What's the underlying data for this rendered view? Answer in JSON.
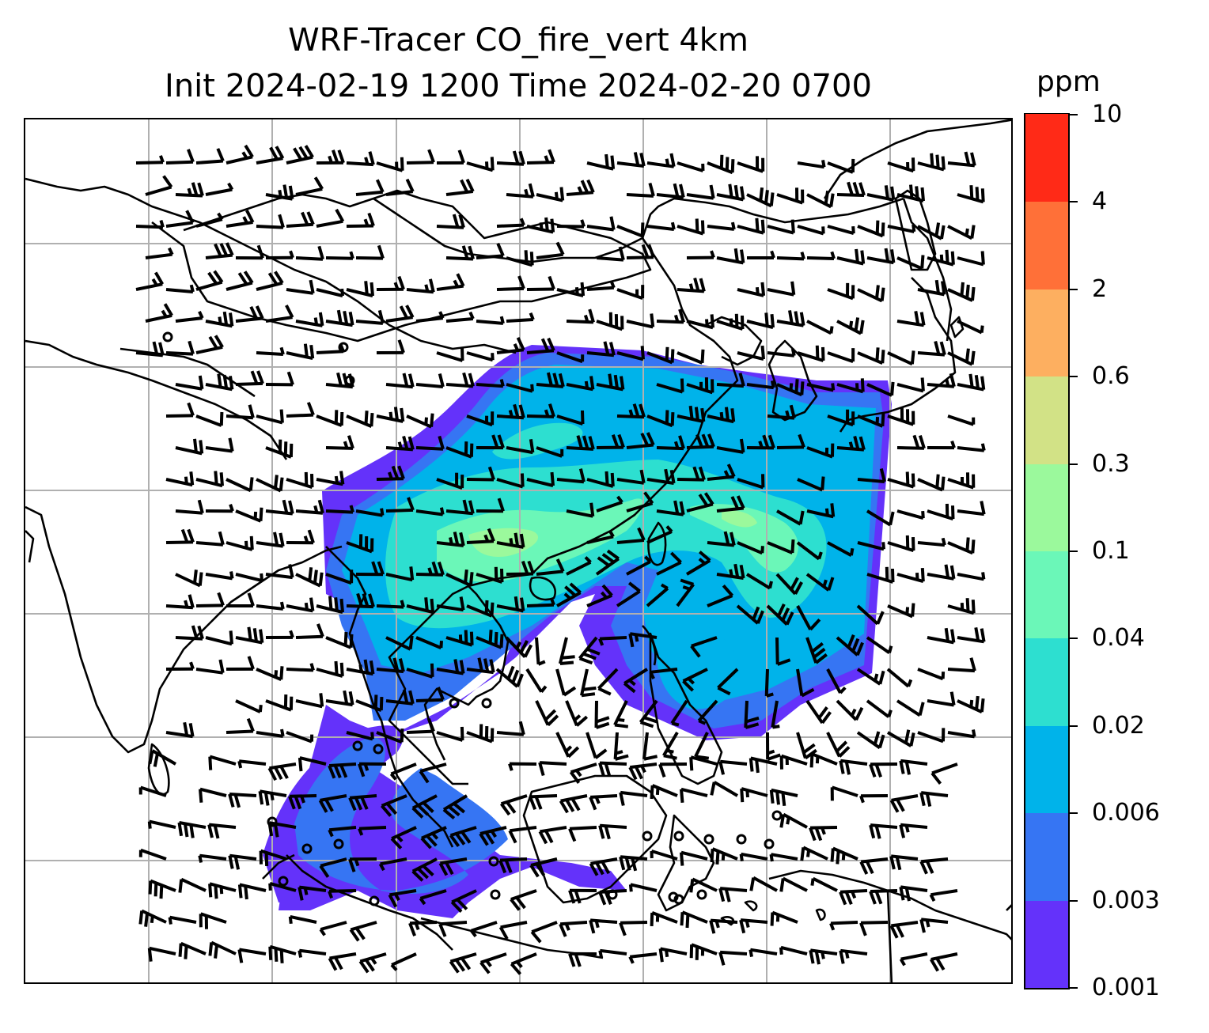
{
  "title": {
    "line1": "WRF-Tracer CO_fire_vert 4km",
    "line2": "Init 2024-02-19 1200 Time 2024-02-20 0700"
  },
  "colorbar": {
    "unit": "ppm",
    "levels": [
      {
        "label": "0.001",
        "color": "#6432fa"
      },
      {
        "label": "0.003",
        "color": "#3675f3"
      },
      {
        "label": "0.006",
        "color": "#00b3ea"
      },
      {
        "label": "0.02",
        "color": "#2ddfd0"
      },
      {
        "label": "0.04",
        "color": "#6bf7b8"
      },
      {
        "label": "0.1",
        "color": "#9bf99c"
      },
      {
        "label": "0.3",
        "color": "#d2e286"
      },
      {
        "label": "0.6",
        "color": "#fdaf60"
      },
      {
        "label": "2",
        "color": "#ff7038"
      },
      {
        "label": "4",
        "color": "#ff2a17"
      },
      {
        "label": "10",
        "color": ""
      }
    ]
  },
  "map": {
    "gridlines": true,
    "gridline_color": "#b0b0b0",
    "coastline_color": "#000000",
    "wind_symbol": "wind-barb",
    "calm_symbol": "circle"
  }
}
